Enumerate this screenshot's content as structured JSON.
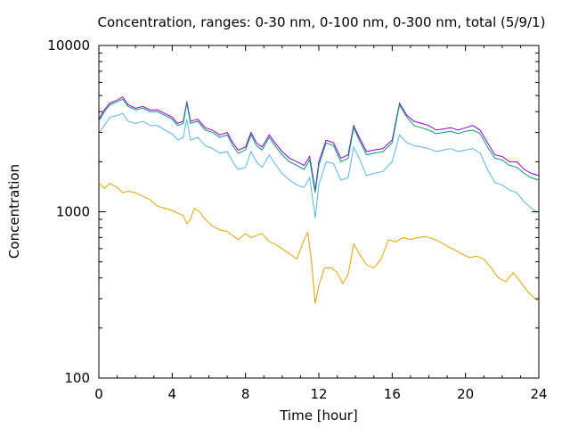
{
  "chart_data": {
    "type": "line",
    "title": "Concentration, ranges: 0-30 nm, 0-100 nm, 0-300 nm, total (5/9/1)",
    "xlabel": "Time [hour]",
    "ylabel": "Concentration",
    "xlim": [
      0,
      24
    ],
    "ylim": [
      100,
      10000
    ],
    "yscale": "log",
    "grid": false,
    "legend": "none",
    "x_ticks": [
      0,
      4,
      8,
      12,
      16,
      20,
      24
    ],
    "y_ticks": [
      100,
      1000,
      10000
    ],
    "series": [
      {
        "color": "#9400d3",
        "points": [
          [
            0,
            3600
          ],
          [
            0.3,
            4100
          ],
          [
            0.6,
            4500
          ],
          [
            1,
            4700
          ],
          [
            1.3,
            4900
          ],
          [
            1.6,
            4400
          ],
          [
            2,
            4200
          ],
          [
            2.4,
            4300
          ],
          [
            2.8,
            4100
          ],
          [
            3.2,
            4100
          ],
          [
            3.6,
            3900
          ],
          [
            4,
            3700
          ],
          [
            4.3,
            3400
          ],
          [
            4.6,
            3500
          ],
          [
            4.8,
            4600
          ],
          [
            5,
            3500
          ],
          [
            5.4,
            3600
          ],
          [
            5.8,
            3200
          ],
          [
            6.2,
            3100
          ],
          [
            6.6,
            2900
          ],
          [
            7,
            3000
          ],
          [
            7.3,
            2600
          ],
          [
            7.6,
            2350
          ],
          [
            8,
            2450
          ],
          [
            8.3,
            3000
          ],
          [
            8.6,
            2600
          ],
          [
            8.9,
            2450
          ],
          [
            9.3,
            2900
          ],
          [
            9.6,
            2600
          ],
          [
            10,
            2300
          ],
          [
            10.4,
            2100
          ],
          [
            10.8,
            2000
          ],
          [
            11.2,
            1900
          ],
          [
            11.5,
            2150
          ],
          [
            11.8,
            1350
          ],
          [
            12,
            2000
          ],
          [
            12.4,
            2700
          ],
          [
            12.8,
            2600
          ],
          [
            13.2,
            2100
          ],
          [
            13.6,
            2200
          ],
          [
            13.9,
            3300
          ],
          [
            14.2,
            2800
          ],
          [
            14.6,
            2300
          ],
          [
            15,
            2350
          ],
          [
            15.5,
            2400
          ],
          [
            16,
            2700
          ],
          [
            16.4,
            4500
          ],
          [
            16.8,
            3800
          ],
          [
            17.2,
            3500
          ],
          [
            17.6,
            3400
          ],
          [
            18,
            3300
          ],
          [
            18.4,
            3100
          ],
          [
            18.8,
            3150
          ],
          [
            19.2,
            3200
          ],
          [
            19.6,
            3100
          ],
          [
            20,
            3200
          ],
          [
            20.4,
            3300
          ],
          [
            20.8,
            3100
          ],
          [
            21.2,
            2600
          ],
          [
            21.6,
            2200
          ],
          [
            22,
            2150
          ],
          [
            22.4,
            2000
          ],
          [
            22.8,
            2000
          ],
          [
            23.2,
            1800
          ],
          [
            23.6,
            1700
          ],
          [
            24,
            1650
          ]
        ]
      },
      {
        "color": "#009e73",
        "points": [
          [
            0,
            3500
          ],
          [
            0.3,
            4000
          ],
          [
            0.6,
            4400
          ],
          [
            1,
            4600
          ],
          [
            1.3,
            4750
          ],
          [
            1.6,
            4300
          ],
          [
            2,
            4100
          ],
          [
            2.4,
            4200
          ],
          [
            2.8,
            4000
          ],
          [
            3.2,
            4000
          ],
          [
            3.6,
            3800
          ],
          [
            4,
            3600
          ],
          [
            4.3,
            3300
          ],
          [
            4.6,
            3400
          ],
          [
            4.8,
            4500
          ],
          [
            5,
            3400
          ],
          [
            5.4,
            3500
          ],
          [
            5.8,
            3100
          ],
          [
            6.2,
            3000
          ],
          [
            6.6,
            2800
          ],
          [
            7,
            2900
          ],
          [
            7.3,
            2500
          ],
          [
            7.6,
            2250
          ],
          [
            8,
            2350
          ],
          [
            8.3,
            2900
          ],
          [
            8.6,
            2500
          ],
          [
            8.9,
            2350
          ],
          [
            9.3,
            2800
          ],
          [
            9.6,
            2500
          ],
          [
            10,
            2200
          ],
          [
            10.4,
            2000
          ],
          [
            10.8,
            1900
          ],
          [
            11.2,
            1800
          ],
          [
            11.5,
            2050
          ],
          [
            11.8,
            1300
          ],
          [
            12,
            1900
          ],
          [
            12.4,
            2600
          ],
          [
            12.8,
            2500
          ],
          [
            13.2,
            2000
          ],
          [
            13.6,
            2100
          ],
          [
            13.9,
            3200
          ],
          [
            14.2,
            2700
          ],
          [
            14.6,
            2200
          ],
          [
            15,
            2250
          ],
          [
            15.5,
            2300
          ],
          [
            16,
            2600
          ],
          [
            16.4,
            4400
          ],
          [
            16.8,
            3700
          ],
          [
            17.2,
            3300
          ],
          [
            17.6,
            3200
          ],
          [
            18,
            3100
          ],
          [
            18.4,
            2950
          ],
          [
            18.8,
            3000
          ],
          [
            19.2,
            3050
          ],
          [
            19.6,
            2950
          ],
          [
            20,
            3050
          ],
          [
            20.4,
            3100
          ],
          [
            20.8,
            2950
          ],
          [
            21.2,
            2450
          ],
          [
            21.6,
            2100
          ],
          [
            22,
            2050
          ],
          [
            22.4,
            1900
          ],
          [
            22.8,
            1850
          ],
          [
            23.2,
            1700
          ],
          [
            23.6,
            1600
          ],
          [
            24,
            1550
          ]
        ]
      },
      {
        "color": "#56b4e9",
        "points": [
          [
            0,
            2950
          ],
          [
            0.3,
            3300
          ],
          [
            0.6,
            3700
          ],
          [
            1,
            3800
          ],
          [
            1.3,
            3900
          ],
          [
            1.6,
            3500
          ],
          [
            2,
            3400
          ],
          [
            2.4,
            3500
          ],
          [
            2.8,
            3300
          ],
          [
            3.2,
            3300
          ],
          [
            3.6,
            3100
          ],
          [
            4,
            2950
          ],
          [
            4.3,
            2700
          ],
          [
            4.6,
            2800
          ],
          [
            4.8,
            3600
          ],
          [
            5,
            2700
          ],
          [
            5.4,
            2800
          ],
          [
            5.8,
            2500
          ],
          [
            6.2,
            2400
          ],
          [
            6.6,
            2250
          ],
          [
            7,
            2300
          ],
          [
            7.3,
            2000
          ],
          [
            7.6,
            1800
          ],
          [
            8,
            1850
          ],
          [
            8.3,
            2300
          ],
          [
            8.6,
            2000
          ],
          [
            8.9,
            1850
          ],
          [
            9.3,
            2200
          ],
          [
            9.6,
            1950
          ],
          [
            10,
            1700
          ],
          [
            10.4,
            1550
          ],
          [
            10.8,
            1450
          ],
          [
            11.2,
            1400
          ],
          [
            11.5,
            1600
          ],
          [
            11.8,
            920
          ],
          [
            12,
            1450
          ],
          [
            12.4,
            2000
          ],
          [
            12.8,
            1950
          ],
          [
            13.2,
            1550
          ],
          [
            13.6,
            1600
          ],
          [
            13.9,
            2450
          ],
          [
            14.2,
            2100
          ],
          [
            14.6,
            1650
          ],
          [
            15,
            1700
          ],
          [
            15.5,
            1750
          ],
          [
            16,
            2000
          ],
          [
            16.4,
            2900
          ],
          [
            16.8,
            2600
          ],
          [
            17.2,
            2500
          ],
          [
            17.6,
            2450
          ],
          [
            18,
            2400
          ],
          [
            18.4,
            2300
          ],
          [
            18.8,
            2350
          ],
          [
            19.2,
            2400
          ],
          [
            19.6,
            2300
          ],
          [
            20,
            2350
          ],
          [
            20.4,
            2400
          ],
          [
            20.8,
            2250
          ],
          [
            21.2,
            1800
          ],
          [
            21.6,
            1500
          ],
          [
            22,
            1450
          ],
          [
            22.4,
            1350
          ],
          [
            22.8,
            1300
          ],
          [
            23.2,
            1150
          ],
          [
            23.6,
            1050
          ],
          [
            24,
            980
          ]
        ]
      },
      {
        "color": "#e69f00",
        "points": [
          [
            0,
            1500
          ],
          [
            0.3,
            1380
          ],
          [
            0.6,
            1480
          ],
          [
            1,
            1400
          ],
          [
            1.3,
            1300
          ],
          [
            1.6,
            1330
          ],
          [
            2,
            1300
          ],
          [
            2.4,
            1240
          ],
          [
            2.8,
            1180
          ],
          [
            3.2,
            1080
          ],
          [
            3.6,
            1050
          ],
          [
            4,
            1020
          ],
          [
            4.3,
            980
          ],
          [
            4.6,
            950
          ],
          [
            4.8,
            850
          ],
          [
            5,
            900
          ],
          [
            5.2,
            1050
          ],
          [
            5.5,
            1000
          ],
          [
            5.8,
            900
          ],
          [
            6.2,
            820
          ],
          [
            6.6,
            780
          ],
          [
            7,
            760
          ],
          [
            7.3,
            720
          ],
          [
            7.6,
            680
          ],
          [
            8,
            740
          ],
          [
            8.3,
            700
          ],
          [
            8.6,
            720
          ],
          [
            8.9,
            740
          ],
          [
            9.3,
            660
          ],
          [
            9.6,
            640
          ],
          [
            10,
            600
          ],
          [
            10.4,
            560
          ],
          [
            10.8,
            520
          ],
          [
            11.2,
            680
          ],
          [
            11.4,
            750
          ],
          [
            11.6,
            500
          ],
          [
            11.8,
            280
          ],
          [
            12,
            360
          ],
          [
            12.3,
            460
          ],
          [
            12.7,
            460
          ],
          [
            13,
            430
          ],
          [
            13.3,
            370
          ],
          [
            13.6,
            420
          ],
          [
            13.9,
            640
          ],
          [
            14.2,
            560
          ],
          [
            14.6,
            480
          ],
          [
            15,
            460
          ],
          [
            15.4,
            520
          ],
          [
            15.8,
            680
          ],
          [
            16.2,
            660
          ],
          [
            16.6,
            700
          ],
          [
            17,
            680
          ],
          [
            17.4,
            700
          ],
          [
            17.8,
            710
          ],
          [
            18.2,
            690
          ],
          [
            18.6,
            660
          ],
          [
            19,
            620
          ],
          [
            19.4,
            590
          ],
          [
            19.8,
            560
          ],
          [
            20.2,
            530
          ],
          [
            20.6,
            540
          ],
          [
            21,
            520
          ],
          [
            21.4,
            460
          ],
          [
            21.8,
            400
          ],
          [
            22.2,
            380
          ],
          [
            22.6,
            430
          ],
          [
            23,
            380
          ],
          [
            23.4,
            330
          ],
          [
            23.8,
            300
          ],
          [
            24,
            290
          ]
        ]
      }
    ]
  }
}
